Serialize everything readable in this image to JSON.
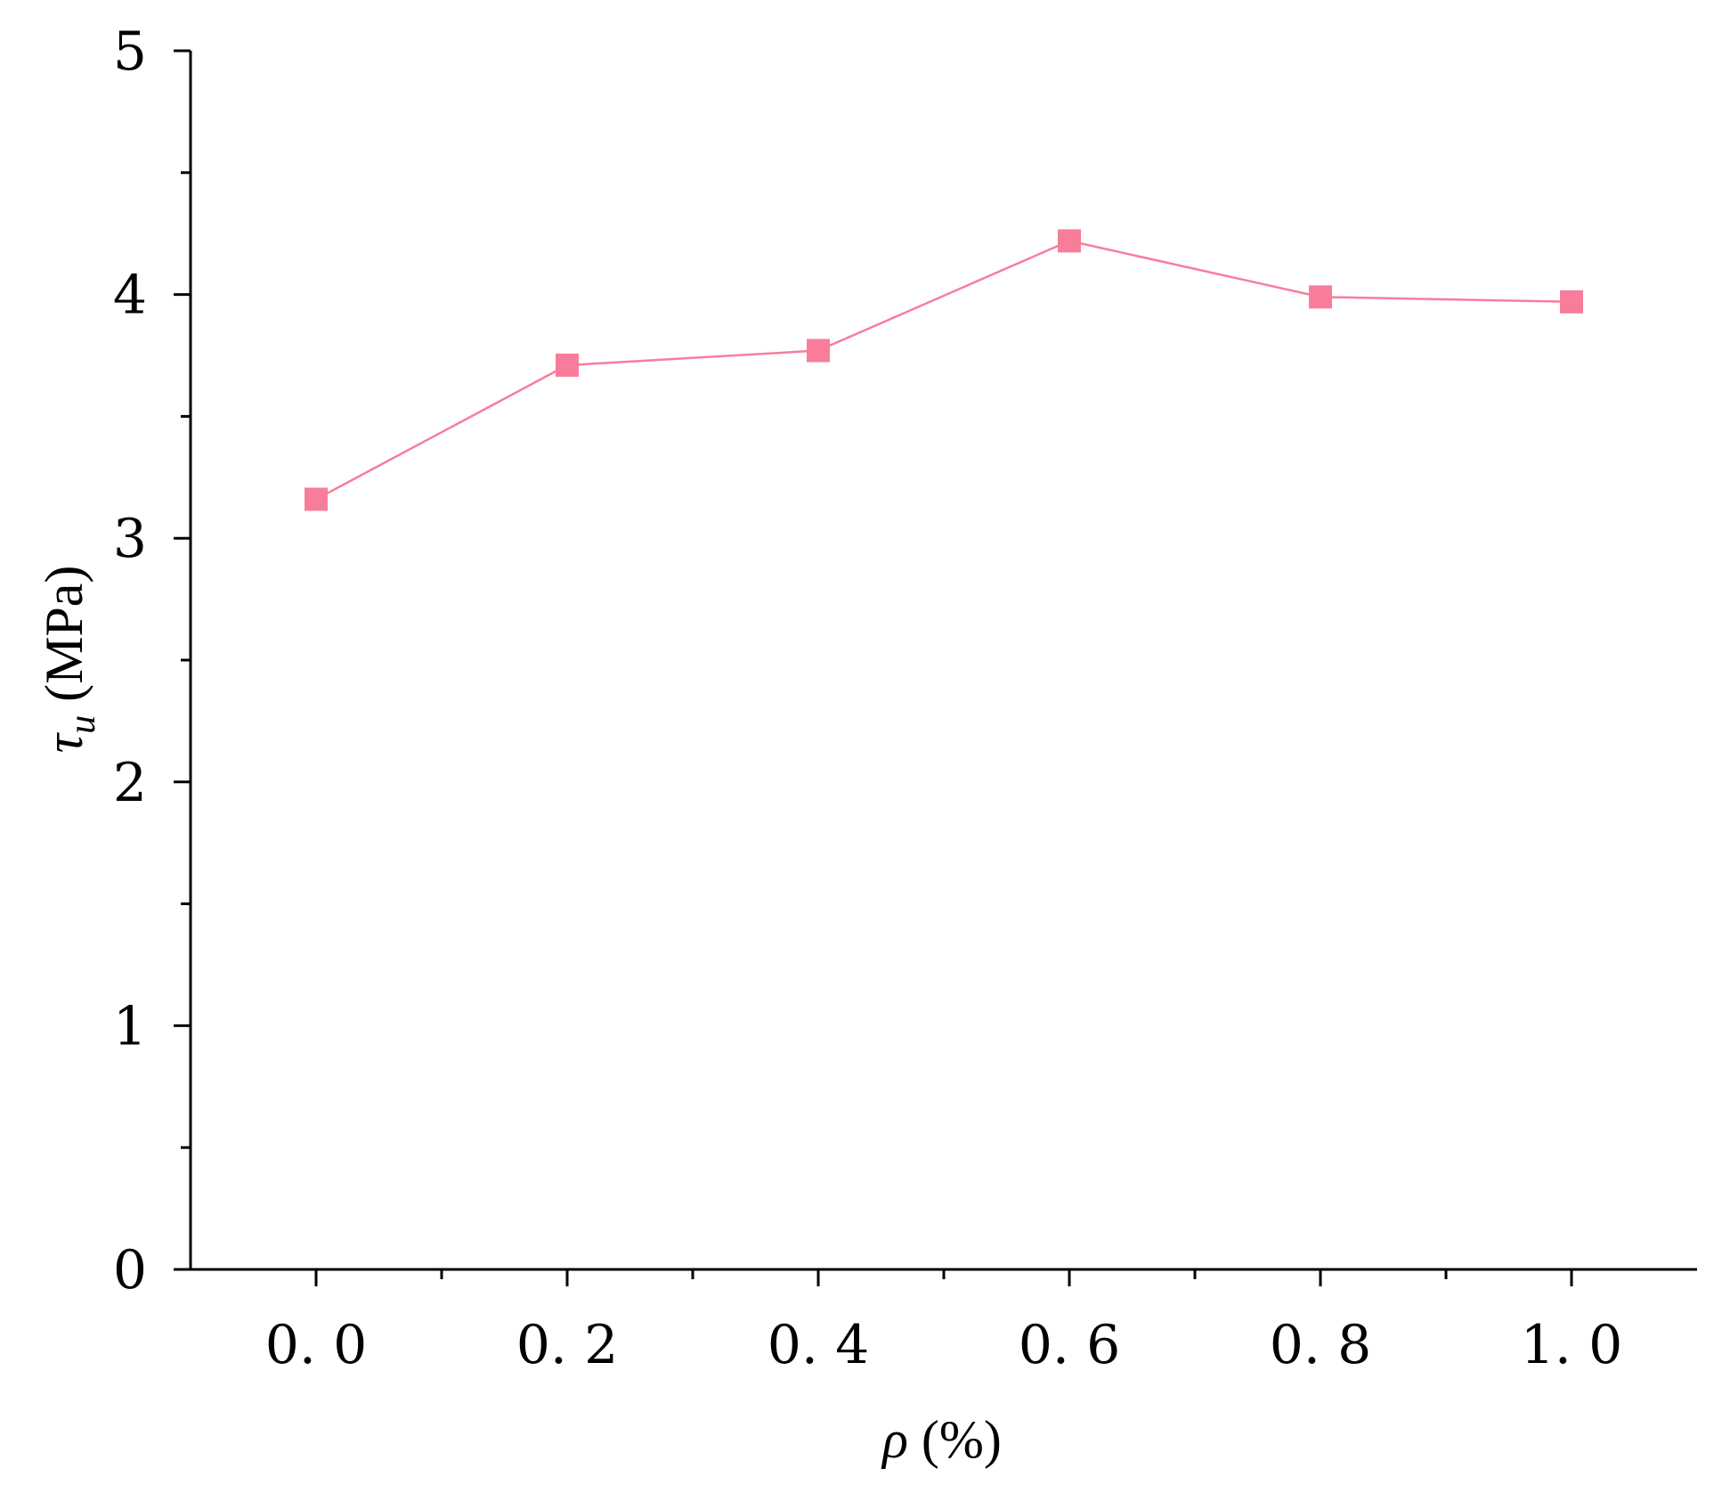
{
  "chart_data": {
    "type": "line",
    "title": "",
    "xlabel": {
      "symbol": "ρ",
      "unit": " (%)"
    },
    "ylabel": {
      "symbol": "τ",
      "subscript": "u",
      "unit": " (MPa)"
    },
    "x": [
      0.0,
      0.2,
      0.4,
      0.6,
      0.8,
      1.0
    ],
    "series": [
      {
        "values": [
          3.16,
          3.71,
          3.77,
          4.22,
          3.99,
          3.97
        ]
      }
    ],
    "xlim": [
      -0.1,
      1.1
    ],
    "ylim": [
      0,
      5
    ],
    "x_ticks": [
      0.0,
      0.2,
      0.4,
      0.6,
      0.8,
      1.0
    ],
    "x_tick_labels": [
      "0. 0",
      "0. 2",
      "0. 4",
      "0. 6",
      "0. 8",
      "1. 0"
    ],
    "x_minor_ticks": [
      0.1,
      0.3,
      0.5,
      0.7,
      0.9
    ],
    "y_ticks": [
      0,
      1,
      2,
      3,
      4,
      5
    ],
    "y_tick_labels": [
      "0",
      "1",
      "2",
      "3",
      "4",
      "5"
    ],
    "y_minor_ticks": [
      0.5,
      1.5,
      2.5,
      3.5,
      4.5
    ],
    "grid": false,
    "legend": "none",
    "series_color": "#F87D9B",
    "marker": "square"
  }
}
